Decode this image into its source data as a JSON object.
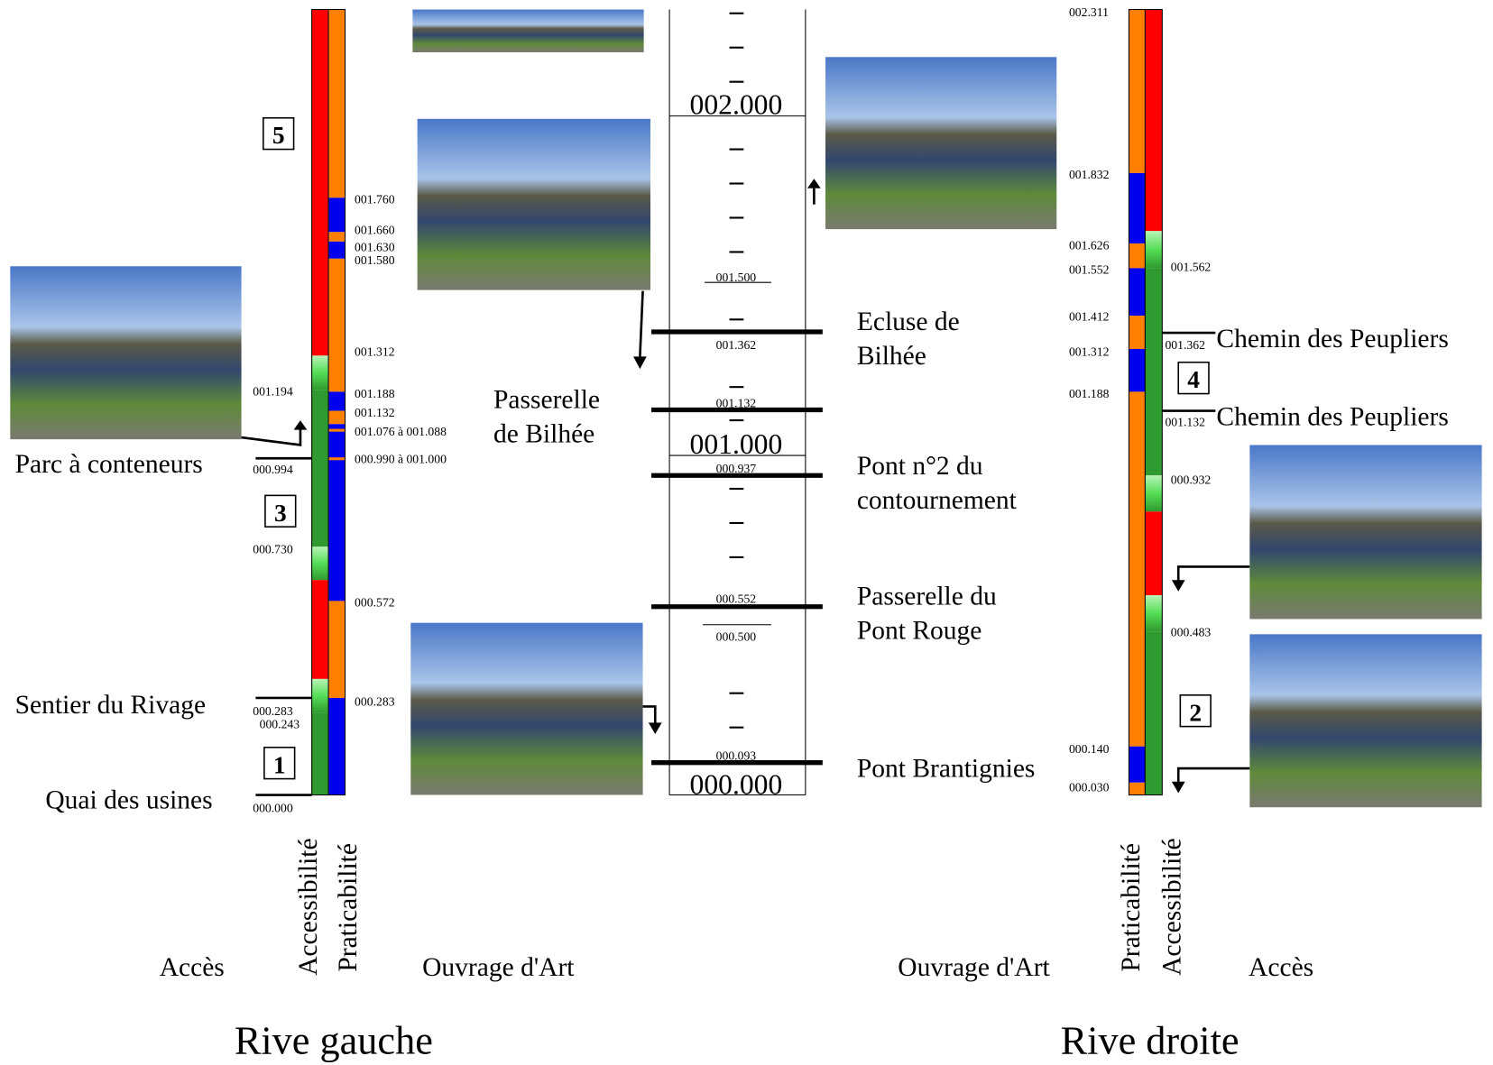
{
  "left_bank": {
    "title": "Rive gauche",
    "column_headers": {
      "access": "Accès",
      "accessibility": "Accessibilité",
      "practicability": "Praticabilité",
      "structure": "Ouvrage d'Art"
    },
    "access_points": [
      {
        "name": "Parc à conteneurs",
        "km": "000.994"
      },
      {
        "name": "Sentier du Rivage",
        "km": "000.283"
      },
      {
        "name": "Quai des usines",
        "km": "000.000"
      }
    ],
    "section_numbers": [
      "5",
      "3",
      "1"
    ],
    "accessibility_km": [
      "001.194",
      "000.730",
      "000.243"
    ],
    "practicability_km": [
      "001.760",
      "001.660",
      "001.630",
      "001.580",
      "001.312",
      "001.188",
      "001.132",
      "001.076 à 001.088",
      "000.990 à 001.000",
      "000.572",
      "000.283"
    ]
  },
  "canal": {
    "kilometres": [
      "002.000",
      "001.500",
      "001.000",
      "000.500",
      "000.000"
    ],
    "structures": [
      {
        "km": "001.362",
        "name": [
          "Ecluse de",
          "Bilhée"
        ]
      },
      {
        "km": "001.132",
        "name": [
          "Passerelle",
          "de Bilhée"
        ]
      },
      {
        "km": "000.937",
        "name": [
          "Pont n°2 du",
          "contournement"
        ]
      },
      {
        "km": "000.552",
        "name": [
          "Passerelle du",
          "Pont Rouge"
        ]
      },
      {
        "km": "000.093",
        "name": [
          "Pont Brantignies"
        ]
      }
    ]
  },
  "right_bank": {
    "title": "Rive droite",
    "column_headers": {
      "practicability": "Praticabilité",
      "accessibility": "Accessibilité",
      "access": "Accès",
      "structure": "Ouvrage d'Art"
    },
    "access_points": [
      {
        "name": "Chemin des Peupliers",
        "km": "001.362"
      },
      {
        "name": "Chemin des Peupliers",
        "km": "001.132"
      }
    ],
    "section_numbers": [
      "4",
      "2"
    ],
    "accessibility_km": [
      "001.562",
      "000.932",
      "000.483"
    ],
    "practicability_km": [
      "002.311",
      "001.832",
      "001.626",
      "001.552",
      "001.412",
      "001.312",
      "001.188",
      "000.140",
      "000.030"
    ]
  }
}
